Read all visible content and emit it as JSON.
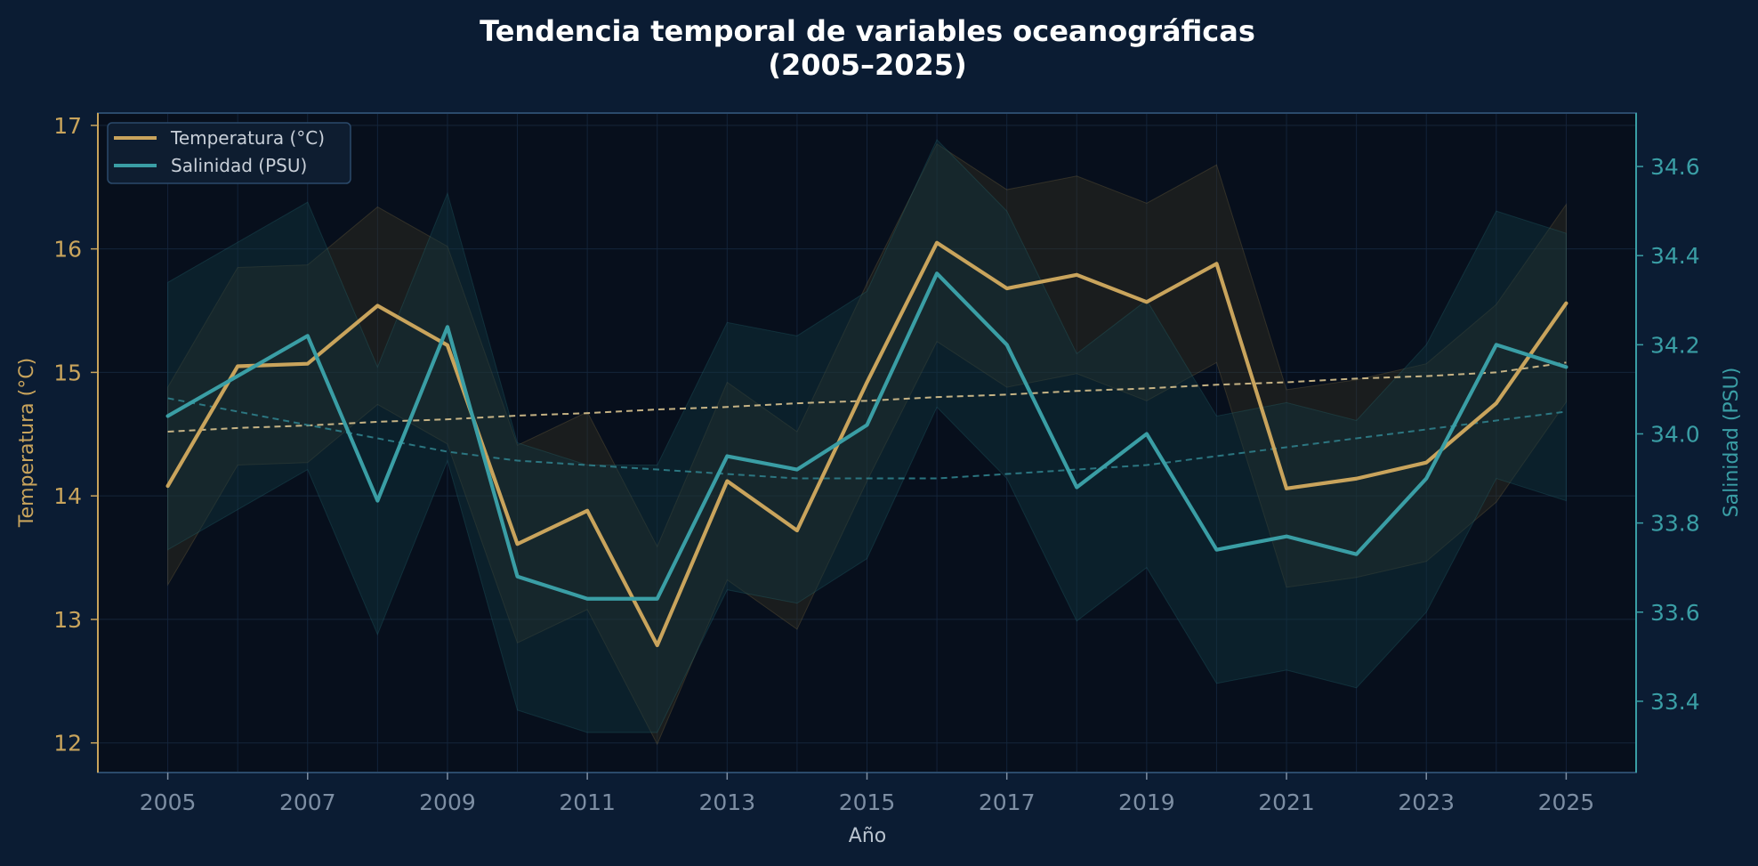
{
  "chart_data": {
    "type": "line",
    "title_line1": "Tendencia temporal de variables oceanográficas",
    "title_line2": "(2005–2025)",
    "xlabel": "Año",
    "ylabel_left": "Temperatura (°C)",
    "ylabel_right": "Salinidad (PSU)",
    "x": [
      2005,
      2006,
      2007,
      2008,
      2009,
      2010,
      2011,
      2012,
      2013,
      2014,
      2015,
      2016,
      2017,
      2018,
      2019,
      2020,
      2021,
      2022,
      2023,
      2024,
      2025
    ],
    "x_ticks": [
      2005,
      2007,
      2009,
      2011,
      2013,
      2015,
      2017,
      2019,
      2021,
      2023,
      2025
    ],
    "xlim": [
      2004,
      2026
    ],
    "ylim_left": [
      11.76,
      17.1
    ],
    "ylim_right": [
      33.24,
      34.72
    ],
    "y_ticks_left": [
      12,
      13,
      14,
      15,
      16,
      17
    ],
    "y_ticks_right": [
      33.4,
      33.6,
      33.8,
      34.0,
      34.2,
      34.4,
      34.6
    ],
    "grid": true,
    "legend_position": "top-left",
    "series": [
      {
        "name": "Temperatura (°C)",
        "axis": "left",
        "color": "#c9a45c",
        "values": [
          14.08,
          15.05,
          15.07,
          15.54,
          15.22,
          13.61,
          13.88,
          12.79,
          14.12,
          13.72,
          14.92,
          16.05,
          15.68,
          15.79,
          15.57,
          15.88,
          14.06,
          14.14,
          14.27,
          14.75,
          15.56
        ],
        "band_upper": [
          14.88,
          15.85,
          15.87,
          16.34,
          16.02,
          14.41,
          14.68,
          13.59,
          14.92,
          14.52,
          15.72,
          16.85,
          16.48,
          16.59,
          16.37,
          16.68,
          14.86,
          14.94,
          15.07,
          15.55,
          16.36
        ],
        "band_lower": [
          13.28,
          14.25,
          14.27,
          14.74,
          14.42,
          12.81,
          13.08,
          11.99,
          13.32,
          12.92,
          14.12,
          15.25,
          14.88,
          14.99,
          14.77,
          15.08,
          13.26,
          13.34,
          13.47,
          13.95,
          14.76
        ],
        "trend": [
          14.52,
          14.55,
          14.57,
          14.6,
          14.62,
          14.65,
          14.67,
          14.7,
          14.72,
          14.75,
          14.77,
          14.8,
          14.82,
          14.85,
          14.87,
          14.9,
          14.92,
          14.95,
          14.97,
          15.0,
          15.08
        ]
      },
      {
        "name": "Salinidad (PSU)",
        "axis": "right",
        "color": "#3a9ea5",
        "values": [
          34.04,
          34.13,
          34.22,
          33.85,
          34.24,
          33.68,
          33.63,
          33.63,
          33.95,
          33.92,
          34.02,
          34.36,
          34.2,
          33.88,
          34.0,
          33.74,
          33.77,
          33.73,
          33.9,
          34.2,
          34.15
        ],
        "band_upper": [
          34.34,
          34.43,
          34.52,
          34.15,
          34.54,
          33.98,
          33.93,
          33.93,
          34.25,
          34.22,
          34.32,
          34.66,
          34.5,
          34.18,
          34.3,
          34.04,
          34.07,
          34.03,
          34.2,
          34.5,
          34.45
        ],
        "band_lower": [
          33.74,
          33.83,
          33.92,
          33.55,
          33.94,
          33.38,
          33.33,
          33.33,
          33.65,
          33.62,
          33.72,
          34.06,
          33.9,
          33.58,
          33.7,
          33.44,
          33.47,
          33.43,
          33.6,
          33.9,
          33.85
        ],
        "trend": [
          34.08,
          34.05,
          34.02,
          33.99,
          33.96,
          33.94,
          33.93,
          33.92,
          33.91,
          33.9,
          33.9,
          33.9,
          33.91,
          33.92,
          33.93,
          33.95,
          33.97,
          33.99,
          34.01,
          34.03,
          34.05
        ]
      }
    ]
  },
  "colors": {
    "background": "#0b1c33",
    "plot_background": "#070f1c",
    "temperature": "#c9a45c",
    "salinity": "#3a9ea5",
    "grid": "#15263a",
    "frame": "#2b4a6b"
  }
}
